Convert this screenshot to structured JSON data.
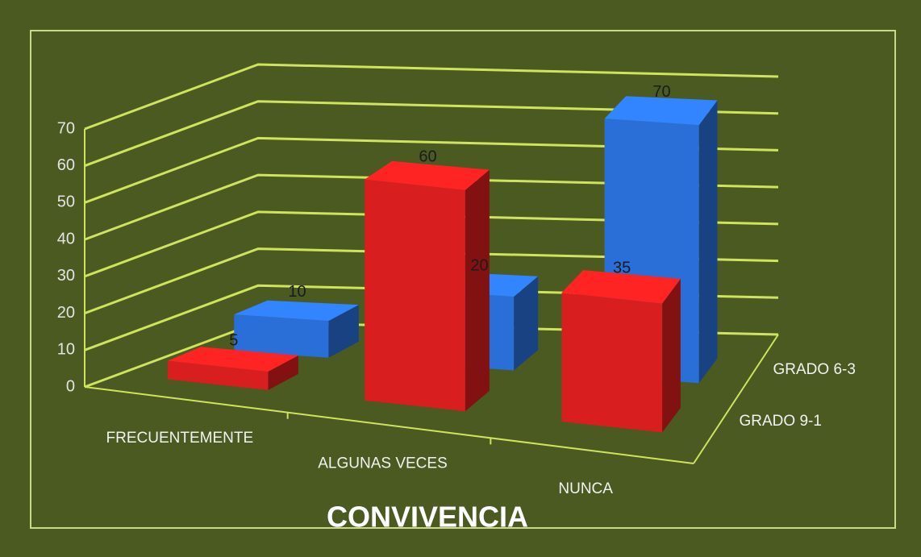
{
  "chart_data": {
    "type": "bar3d",
    "title": "CONVIVENCIA",
    "categories": [
      "FRECUENTEMENTE",
      "ALGUNAS VECES",
      "NUNCA"
    ],
    "series": [
      {
        "name": "GRADO 9-1",
        "color": "#d81e1e",
        "values": [
          5,
          60,
          35
        ]
      },
      {
        "name": "GRADO 6-3",
        "color": "#2a6ed8",
        "values": [
          10,
          20,
          70
        ]
      }
    ],
    "ylim": [
      0,
      70
    ],
    "yticks": [
      0,
      10,
      20,
      30,
      40,
      50,
      60,
      70
    ],
    "grid": true
  }
}
